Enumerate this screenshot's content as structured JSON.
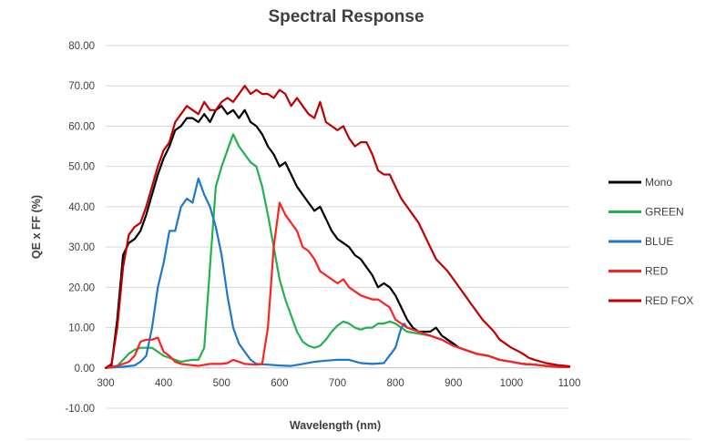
{
  "chart_data": {
    "type": "line",
    "title": "Spectral Response",
    "xlabel": "Wavelength (nm)",
    "ylabel": "QE x FF (%)",
    "xlim": [
      300,
      1100
    ],
    "ylim": [
      -10,
      80
    ],
    "xticks": [
      "300",
      "400",
      "500",
      "600",
      "700",
      "800",
      "900",
      "1000",
      "1100"
    ],
    "yticks": [
      "-10.00",
      "0.00",
      "10.00",
      "20.00",
      "30.00",
      "40.00",
      "50.00",
      "60.00",
      "70.00",
      "80.00"
    ],
    "grid": "horizontal",
    "legend_position": "right",
    "series": [
      {
        "name": "Mono",
        "color": "#000000",
        "points": [
          [
            300,
            0
          ],
          [
            310,
            0.5
          ],
          [
            320,
            12
          ],
          [
            330,
            28
          ],
          [
            340,
            31
          ],
          [
            350,
            32
          ],
          [
            360,
            34
          ],
          [
            370,
            38
          ],
          [
            380,
            43
          ],
          [
            390,
            48
          ],
          [
            400,
            52
          ],
          [
            410,
            55
          ],
          [
            420,
            59
          ],
          [
            430,
            60
          ],
          [
            440,
            62
          ],
          [
            450,
            62
          ],
          [
            460,
            61
          ],
          [
            470,
            63
          ],
          [
            480,
            61
          ],
          [
            490,
            64
          ],
          [
            500,
            65
          ],
          [
            510,
            63
          ],
          [
            520,
            64
          ],
          [
            530,
            62
          ],
          [
            540,
            64
          ],
          [
            550,
            61
          ],
          [
            560,
            60
          ],
          [
            570,
            58
          ],
          [
            580,
            55
          ],
          [
            590,
            53
          ],
          [
            600,
            50
          ],
          [
            610,
            51
          ],
          [
            620,
            48
          ],
          [
            630,
            45
          ],
          [
            640,
            43
          ],
          [
            650,
            41
          ],
          [
            660,
            39
          ],
          [
            670,
            40
          ],
          [
            680,
            37
          ],
          [
            690,
            34
          ],
          [
            700,
            32
          ],
          [
            710,
            31
          ],
          [
            720,
            30
          ],
          [
            730,
            28
          ],
          [
            740,
            27
          ],
          [
            750,
            25
          ],
          [
            760,
            23
          ],
          [
            770,
            20
          ],
          [
            780,
            21
          ],
          [
            790,
            20
          ],
          [
            800,
            18
          ],
          [
            810,
            15
          ],
          [
            820,
            12
          ],
          [
            830,
            10
          ],
          [
            840,
            9
          ],
          [
            850,
            9
          ],
          [
            860,
            9
          ],
          [
            870,
            10
          ],
          [
            880,
            8
          ],
          [
            890,
            7
          ],
          [
            900,
            6
          ],
          [
            910,
            5
          ],
          [
            920,
            4.5
          ],
          [
            940,
            3.5
          ],
          [
            960,
            3
          ],
          [
            980,
            2
          ],
          [
            1000,
            1.5
          ],
          [
            1020,
            1
          ],
          [
            1040,
            0.8
          ],
          [
            1060,
            0.5
          ],
          [
            1080,
            0.3
          ],
          [
            1100,
            0.2
          ]
        ]
      },
      {
        "name": "GREEN",
        "color": "#22b14c",
        "points": [
          [
            300,
            0
          ],
          [
            320,
            0.5
          ],
          [
            330,
            2
          ],
          [
            340,
            3.5
          ],
          [
            350,
            4.5
          ],
          [
            360,
            5
          ],
          [
            370,
            5
          ],
          [
            380,
            5
          ],
          [
            390,
            4
          ],
          [
            400,
            3
          ],
          [
            410,
            2.5
          ],
          [
            420,
            2
          ],
          [
            430,
            1.5
          ],
          [
            440,
            1.8
          ],
          [
            450,
            2
          ],
          [
            460,
            2
          ],
          [
            470,
            5
          ],
          [
            480,
            25
          ],
          [
            490,
            45
          ],
          [
            500,
            50
          ],
          [
            510,
            54
          ],
          [
            520,
            58
          ],
          [
            530,
            55
          ],
          [
            540,
            53
          ],
          [
            550,
            51
          ],
          [
            560,
            50
          ],
          [
            570,
            45
          ],
          [
            580,
            38
          ],
          [
            590,
            30
          ],
          [
            600,
            22
          ],
          [
            610,
            17
          ],
          [
            620,
            13
          ],
          [
            630,
            9
          ],
          [
            640,
            6.5
          ],
          [
            650,
            5.5
          ],
          [
            660,
            5
          ],
          [
            670,
            5.5
          ],
          [
            680,
            7
          ],
          [
            690,
            9
          ],
          [
            700,
            10.5
          ],
          [
            710,
            11.5
          ],
          [
            720,
            11
          ],
          [
            730,
            10
          ],
          [
            740,
            9.5
          ],
          [
            750,
            10
          ],
          [
            760,
            10
          ],
          [
            770,
            11
          ],
          [
            780,
            11
          ],
          [
            790,
            11.5
          ],
          [
            800,
            11
          ],
          [
            810,
            10
          ],
          [
            820,
            9
          ],
          [
            840,
            8.5
          ],
          [
            860,
            8
          ],
          [
            880,
            7
          ],
          [
            900,
            5.5
          ],
          [
            920,
            4.5
          ],
          [
            940,
            3.5
          ],
          [
            960,
            3
          ],
          [
            980,
            2
          ],
          [
            1000,
            1.5
          ],
          [
            1020,
            1
          ],
          [
            1040,
            0.8
          ],
          [
            1060,
            0.5
          ],
          [
            1080,
            0.3
          ],
          [
            1100,
            0.2
          ]
        ]
      },
      {
        "name": "BLUE",
        "color": "#1f77c8",
        "points": [
          [
            300,
            0
          ],
          [
            330,
            0.3
          ],
          [
            350,
            0.6
          ],
          [
            360,
            1.5
          ],
          [
            370,
            3
          ],
          [
            380,
            10
          ],
          [
            390,
            20
          ],
          [
            400,
            26
          ],
          [
            410,
            34
          ],
          [
            420,
            34
          ],
          [
            430,
            40
          ],
          [
            440,
            42
          ],
          [
            450,
            41
          ],
          [
            460,
            47
          ],
          [
            470,
            43
          ],
          [
            480,
            40
          ],
          [
            490,
            35
          ],
          [
            500,
            28
          ],
          [
            510,
            18
          ],
          [
            520,
            10
          ],
          [
            530,
            6
          ],
          [
            540,
            4
          ],
          [
            550,
            2
          ],
          [
            560,
            1
          ],
          [
            580,
            0.8
          ],
          [
            600,
            0.6
          ],
          [
            620,
            0.5
          ],
          [
            640,
            1
          ],
          [
            660,
            1.5
          ],
          [
            680,
            1.8
          ],
          [
            700,
            2
          ],
          [
            720,
            2
          ],
          [
            740,
            1.2
          ],
          [
            760,
            1
          ],
          [
            780,
            1.2
          ],
          [
            800,
            5
          ],
          [
            810,
            10
          ],
          [
            815,
            11
          ],
          [
            820,
            10
          ],
          [
            840,
            9
          ],
          [
            860,
            8
          ],
          [
            880,
            7
          ],
          [
            900,
            5.5
          ],
          [
            920,
            4.5
          ],
          [
            940,
            3.5
          ],
          [
            960,
            3
          ],
          [
            980,
            2
          ],
          [
            1000,
            1.5
          ],
          [
            1020,
            1
          ],
          [
            1040,
            0.8
          ],
          [
            1060,
            0.5
          ],
          [
            1080,
            0.3
          ],
          [
            1100,
            0.2
          ]
        ]
      },
      {
        "name": "RED",
        "color": "#ff2020",
        "points": [
          [
            300,
            0
          ],
          [
            320,
            0.5
          ],
          [
            340,
            1.5
          ],
          [
            350,
            3
          ],
          [
            360,
            6.5
          ],
          [
            370,
            7
          ],
          [
            380,
            7
          ],
          [
            390,
            7.5
          ],
          [
            400,
            4
          ],
          [
            410,
            3
          ],
          [
            420,
            1.5
          ],
          [
            430,
            1
          ],
          [
            440,
            0.8
          ],
          [
            460,
            0.5
          ],
          [
            480,
            1
          ],
          [
            500,
            1
          ],
          [
            510,
            1.2
          ],
          [
            520,
            2
          ],
          [
            530,
            1.5
          ],
          [
            540,
            1
          ],
          [
            560,
            0.8
          ],
          [
            570,
            1
          ],
          [
            580,
            10
          ],
          [
            590,
            30
          ],
          [
            600,
            41
          ],
          [
            610,
            38
          ],
          [
            620,
            36
          ],
          [
            630,
            34
          ],
          [
            640,
            30
          ],
          [
            650,
            29
          ],
          [
            660,
            27
          ],
          [
            670,
            24
          ],
          [
            680,
            23
          ],
          [
            690,
            22
          ],
          [
            700,
            21
          ],
          [
            710,
            22
          ],
          [
            720,
            20
          ],
          [
            730,
            19
          ],
          [
            740,
            18
          ],
          [
            750,
            17.5
          ],
          [
            760,
            17
          ],
          [
            770,
            17
          ],
          [
            780,
            16
          ],
          [
            790,
            15
          ],
          [
            800,
            12
          ],
          [
            810,
            11
          ],
          [
            820,
            10
          ],
          [
            840,
            9
          ],
          [
            860,
            8
          ],
          [
            880,
            7
          ],
          [
            900,
            5.5
          ],
          [
            920,
            4.5
          ],
          [
            940,
            3.5
          ],
          [
            960,
            3
          ],
          [
            980,
            2
          ],
          [
            1000,
            1.5
          ],
          [
            1020,
            1
          ],
          [
            1040,
            0.8
          ],
          [
            1060,
            0.5
          ],
          [
            1080,
            0.3
          ],
          [
            1100,
            0.2
          ]
        ]
      },
      {
        "name": "RED FOX",
        "color": "#c00000",
        "points": [
          [
            300,
            0
          ],
          [
            310,
            1
          ],
          [
            320,
            10
          ],
          [
            330,
            25
          ],
          [
            340,
            33
          ],
          [
            350,
            35
          ],
          [
            360,
            36
          ],
          [
            370,
            40
          ],
          [
            380,
            45
          ],
          [
            390,
            50
          ],
          [
            400,
            54
          ],
          [
            410,
            56
          ],
          [
            420,
            61
          ],
          [
            430,
            63
          ],
          [
            440,
            65
          ],
          [
            450,
            64
          ],
          [
            460,
            63
          ],
          [
            470,
            66
          ],
          [
            480,
            64
          ],
          [
            490,
            64
          ],
          [
            500,
            66
          ],
          [
            510,
            67
          ],
          [
            520,
            66
          ],
          [
            530,
            68
          ],
          [
            540,
            70
          ],
          [
            550,
            68
          ],
          [
            560,
            69
          ],
          [
            570,
            68
          ],
          [
            580,
            68
          ],
          [
            590,
            67
          ],
          [
            600,
            69
          ],
          [
            610,
            68
          ],
          [
            620,
            65
          ],
          [
            630,
            67
          ],
          [
            640,
            65
          ],
          [
            650,
            63
          ],
          [
            660,
            62
          ],
          [
            670,
            66
          ],
          [
            680,
            61
          ],
          [
            690,
            60
          ],
          [
            700,
            59
          ],
          [
            710,
            60
          ],
          [
            720,
            57
          ],
          [
            730,
            55
          ],
          [
            740,
            56
          ],
          [
            750,
            56
          ],
          [
            760,
            53
          ],
          [
            770,
            49
          ],
          [
            780,
            48
          ],
          [
            790,
            48
          ],
          [
            800,
            45
          ],
          [
            810,
            42
          ],
          [
            820,
            40
          ],
          [
            830,
            38
          ],
          [
            840,
            36
          ],
          [
            850,
            33
          ],
          [
            860,
            30
          ],
          [
            870,
            27
          ],
          [
            880,
            25.5
          ],
          [
            890,
            24
          ],
          [
            900,
            22
          ],
          [
            910,
            20
          ],
          [
            920,
            18
          ],
          [
            930,
            16
          ],
          [
            940,
            14
          ],
          [
            950,
            12
          ],
          [
            960,
            10.5
          ],
          [
            970,
            9
          ],
          [
            980,
            7
          ],
          [
            990,
            6
          ],
          [
            1000,
            5
          ],
          [
            1010,
            4.3
          ],
          [
            1020,
            3.5
          ],
          [
            1030,
            2.5
          ],
          [
            1040,
            2
          ],
          [
            1060,
            1.2
          ],
          [
            1080,
            0.7
          ],
          [
            1100,
            0.4
          ]
        ]
      }
    ]
  }
}
